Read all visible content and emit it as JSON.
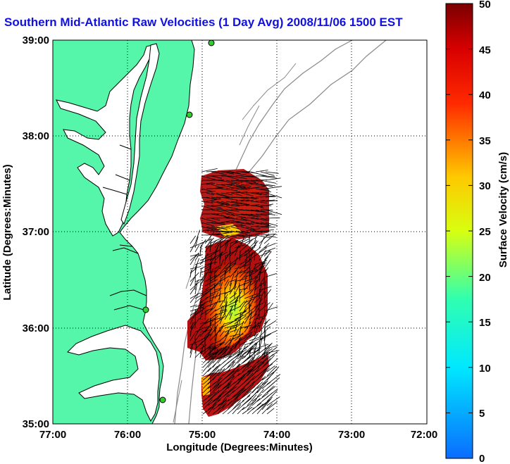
{
  "title": "Southern Mid-Atlantic Raw Velocities (1 Day Avg) 2008/11/06 1500 EST",
  "x_axis": {
    "label": "Longitude (Degrees:Minutes)",
    "ticks": [
      "77:00",
      "76:00",
      "75:00",
      "74:00",
      "73:00",
      "72:00"
    ]
  },
  "y_axis": {
    "label": "Latitude (Degrees:Minutes)",
    "ticks": [
      "39:00",
      "38:00",
      "37:00",
      "36:00",
      "35:00"
    ]
  },
  "colorbar": {
    "label": "Surface Velocity (cm/s)",
    "ticks": [
      "50",
      "45",
      "40",
      "35",
      "30",
      "25",
      "20",
      "15",
      "10",
      "5",
      "0"
    ],
    "min": 0,
    "max": 50
  },
  "map": {
    "lon_range": [
      -77,
      -72
    ],
    "lat_range": [
      35,
      39
    ],
    "land_color": "#55f5aa",
    "grid": "dotted"
  }
}
